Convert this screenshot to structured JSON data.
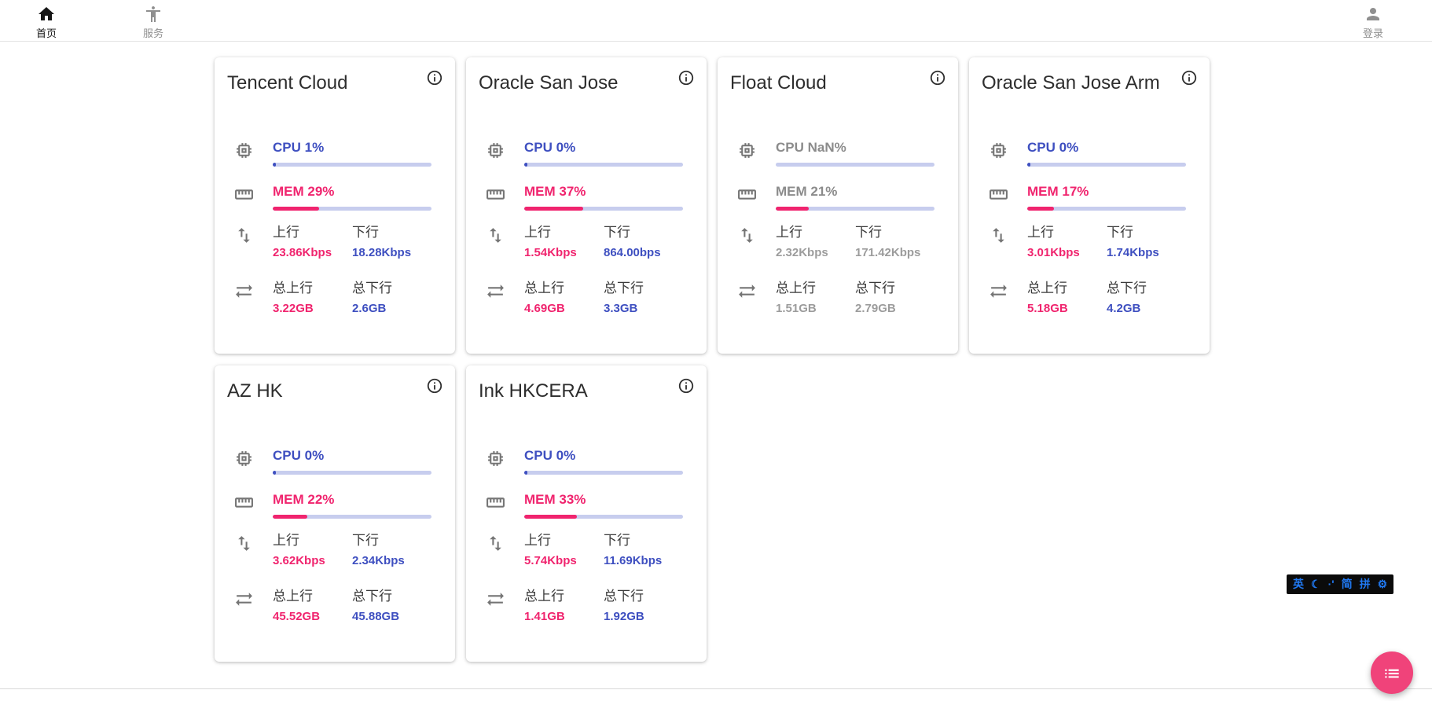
{
  "colors": {
    "pink": "#f0246e",
    "blue": "#3e4fc0",
    "track": "#c7cdee",
    "fab_pink": "#f0437a"
  },
  "nav": {
    "home": {
      "label": "首页"
    },
    "services": {
      "label": "服务"
    },
    "login": {
      "label": "登录"
    }
  },
  "labels": {
    "up": "上行",
    "down": "下行",
    "total_up": "总上行",
    "total_down": "总下行"
  },
  "servers": [
    {
      "name": "Tencent Cloud",
      "cpu_text": "CPU 1%",
      "cpu_pct": 1,
      "mem_text": "MEM 29%",
      "mem_pct": 29,
      "up": "23.86Kbps",
      "down": "18.28Kbps",
      "total_up": "3.22GB",
      "total_down": "2.6GB",
      "offline": false
    },
    {
      "name": "Oracle San Jose",
      "cpu_text": "CPU 0%",
      "cpu_pct": 0,
      "mem_text": "MEM 37%",
      "mem_pct": 37,
      "up": "1.54Kbps",
      "down": "864.00bps",
      "total_up": "4.69GB",
      "total_down": "3.3GB",
      "offline": false
    },
    {
      "name": "Float Cloud",
      "cpu_text": "CPU NaN%",
      "cpu_pct": null,
      "mem_text": "MEM 21%",
      "mem_pct": 21,
      "up": "2.32Kbps",
      "down": "171.42Kbps",
      "total_up": "1.51GB",
      "total_down": "2.79GB",
      "offline": true
    },
    {
      "name": "Oracle San Jose Arm",
      "cpu_text": "CPU 0%",
      "cpu_pct": 0,
      "mem_text": "MEM 17%",
      "mem_pct": 17,
      "up": "3.01Kbps",
      "down": "1.74Kbps",
      "total_up": "5.18GB",
      "total_down": "4.2GB",
      "offline": false
    },
    {
      "name": "AZ HK",
      "cpu_text": "CPU 0%",
      "cpu_pct": 0,
      "mem_text": "MEM 22%",
      "mem_pct": 22,
      "up": "3.62Kbps",
      "down": "2.34Kbps",
      "total_up": "45.52GB",
      "total_down": "45.88GB",
      "offline": false
    },
    {
      "name": "Ink HKCERA",
      "cpu_text": "CPU 0%",
      "cpu_pct": 0,
      "mem_text": "MEM 33%",
      "mem_pct": 33,
      "up": "5.74Kbps",
      "down": "11.69Kbps",
      "total_up": "1.41GB",
      "total_down": "1.92GB",
      "offline": false
    }
  ],
  "ime": {
    "items": [
      "英",
      "☾",
      "·'",
      "简",
      "拼",
      "⚙"
    ]
  }
}
